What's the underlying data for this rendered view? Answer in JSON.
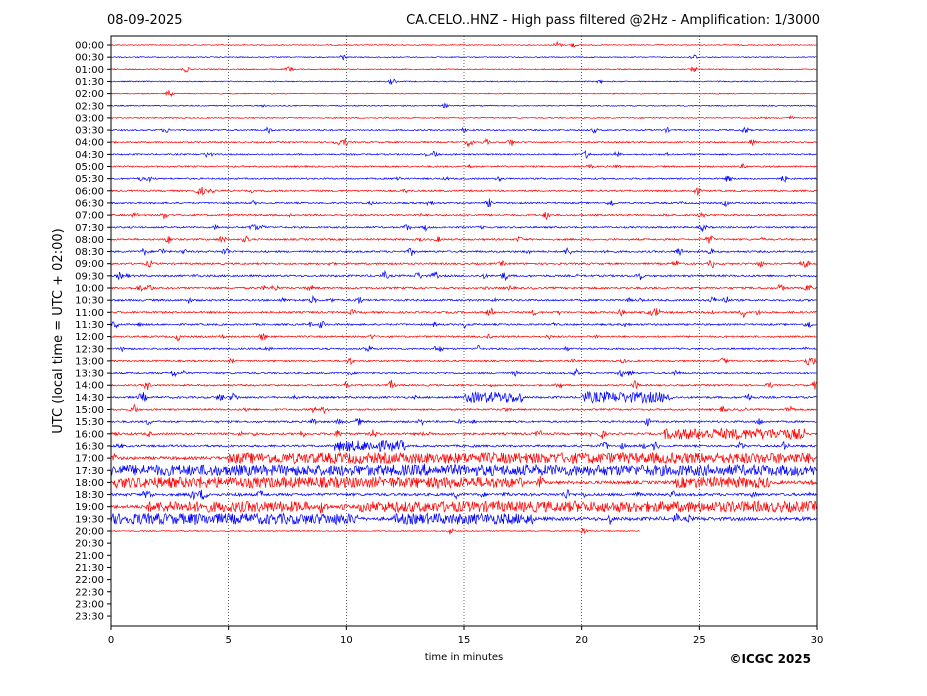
{
  "header": {
    "date": "08-09-2025",
    "title": "CA.CELO..HNZ - High pass filtered @2Hz - Amplification: 1/3000"
  },
  "footer": {
    "copyright": "©ICGC 2025"
  },
  "chart_data": {
    "type": "line",
    "title": "CA.CELO..HNZ - High pass filtered @2Hz - Amplification: 1/3000",
    "xlabel": "time in minutes",
    "ylabel": "UTC (local time = UTC + 02:00)",
    "xlim": [
      0,
      30
    ],
    "x_ticks": [
      0,
      5,
      10,
      15,
      20,
      25,
      30
    ],
    "grid_x": true,
    "grid_style": "dotted",
    "row_labels": [
      "00:00",
      "00:30",
      "01:00",
      "01:30",
      "02:00",
      "02:30",
      "03:00",
      "03:30",
      "04:00",
      "04:30",
      "05:00",
      "05:30",
      "06:00",
      "06:30",
      "07:00",
      "07:30",
      "08:00",
      "08:30",
      "09:00",
      "09:30",
      "10:00",
      "10:30",
      "11:00",
      "11:30",
      "12:00",
      "12:30",
      "13:00",
      "13:30",
      "14:00",
      "14:30",
      "15:00",
      "15:30",
      "16:00",
      "16:30",
      "17:00",
      "17:30",
      "18:00",
      "18:30",
      "19:00",
      "19:30",
      "20:00",
      "20:30",
      "21:00",
      "21:30",
      "22:00",
      "22:30",
      "23:00",
      "23:30"
    ],
    "trace_colors": [
      "#ff0000",
      "#0000ff"
    ],
    "recorded_until_row": "20:00",
    "recorded_until_minute": 22.5,
    "activity_level": [
      0.04,
      0.05,
      0.07,
      0.06,
      0.03,
      0.06,
      0.05,
      0.14,
      0.16,
      0.15,
      0.16,
      0.17,
      0.17,
      0.18,
      0.19,
      0.2,
      0.22,
      0.24,
      0.23,
      0.26,
      0.25,
      0.26,
      0.25,
      0.22,
      0.2,
      0.19,
      0.18,
      0.19,
      0.2,
      0.26,
      0.22,
      0.24,
      0.3,
      0.28,
      0.5,
      0.55,
      0.55,
      0.42,
      0.6,
      0.58,
      0.05,
      0,
      0,
      0,
      0,
      0,
      0,
      0
    ],
    "tremor_bursts": [
      {
        "row": "14:30",
        "start": 15.0,
        "end": 17.5
      },
      {
        "row": "14:30",
        "start": 20.0,
        "end": 23.5
      },
      {
        "row": "16:00",
        "start": 23.5,
        "end": 29.5
      },
      {
        "row": "16:30",
        "start": 9.5,
        "end": 12.5
      },
      {
        "row": "17:00",
        "start": 5.0,
        "end": 30.0
      },
      {
        "row": "17:30",
        "start": 0.0,
        "end": 30.0
      },
      {
        "row": "18:00",
        "start": 0.0,
        "end": 17.5
      },
      {
        "row": "18:00",
        "start": 24.0,
        "end": 28.0
      },
      {
        "row": "19:00",
        "start": 1.5,
        "end": 8.5
      },
      {
        "row": "19:00",
        "start": 10.5,
        "end": 30.0
      },
      {
        "row": "19:30",
        "start": 0.0,
        "end": 10.5
      },
      {
        "row": "19:30",
        "start": 12.0,
        "end": 18.0
      }
    ]
  }
}
